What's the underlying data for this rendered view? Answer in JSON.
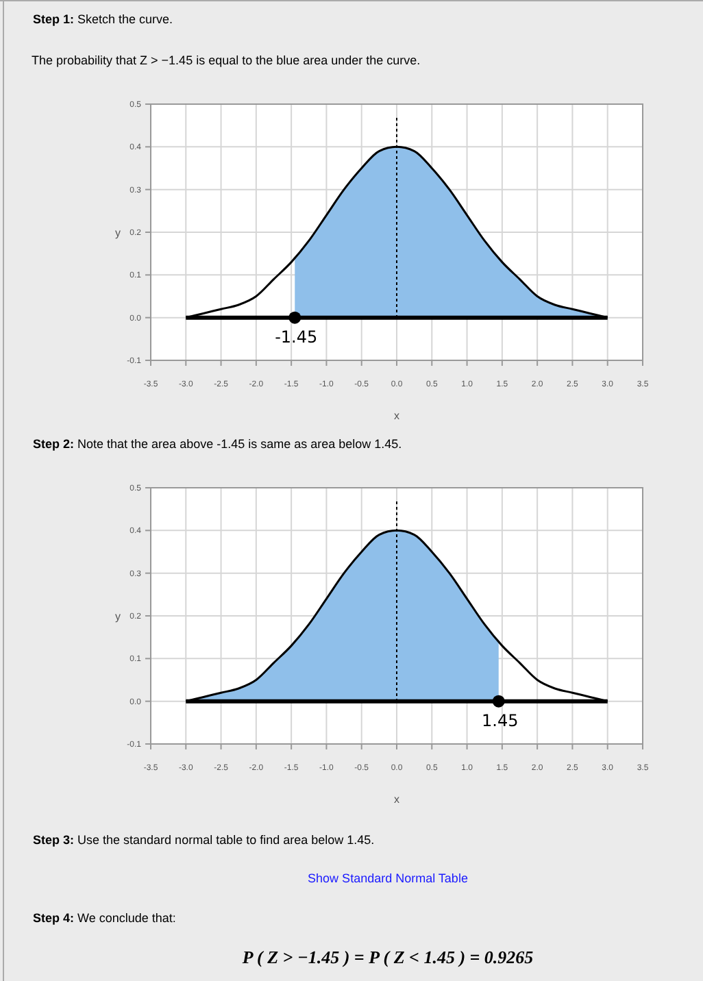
{
  "chart_data": [
    {
      "type": "line",
      "title": "Step 1: Sketch the curve.",
      "subtitle": "The probability that Z > −1.45 is equal to the blue area under the curve.",
      "xlabel": "x",
      "ylabel": "y",
      "xlim": [
        -3.5,
        3.5
      ],
      "xticks": [
        -3.5,
        {
          "value": -3,
          "label": "-3.0"
        },
        -2.5,
        {
          "value": -2,
          "label": "-2.0"
        },
        -1.5,
        {
          "value": -1,
          "label": "-1.0"
        },
        -0.5,
        {
          "value": 0,
          "label": "0.0"
        },
        0.5,
        {
          "value": 1,
          "label": "1.0"
        },
        1.5,
        {
          "value": 2,
          "label": "2.0"
        },
        2.5,
        {
          "value": 3,
          "label": "3.0"
        },
        3.5
      ],
      "ylim": [
        -0.1,
        0.5
      ],
      "yticks": [
        -0.1,
        {
          "value": 0,
          "label": "0.0"
        },
        0.1,
        0.2,
        0.3,
        0.4,
        0.5
      ],
      "grid": true,
      "series": [
        {
          "type": "area",
          "color": "#8fbfea",
          "x": [
            -1.45,
            -1.25,
            -1,
            -0.75,
            -0.5,
            -0.25,
            0,
            0.25,
            0.5,
            0.75,
            1,
            1.25,
            1.5,
            1.75,
            2,
            2.25,
            2.5,
            2.75,
            3
          ],
          "values": [
            0.14,
            0.18,
            0.24,
            0.3,
            0.35,
            0.39,
            0.4,
            0.39,
            0.35,
            0.3,
            0.24,
            0.18,
            0.13,
            0.09,
            0.05,
            0.03,
            0.02,
            0.01,
            0.0
          ]
        },
        {
          "color": "#000000",
          "x": [
            -3,
            -2.75,
            -2.5,
            -2.25,
            -2,
            -1.75,
            -1.5,
            -1.25,
            -1,
            -0.75,
            -0.5,
            -0.25,
            0,
            0.25,
            0.5,
            0.75,
            1,
            1.25,
            1.5,
            1.75,
            2,
            2.25,
            2.5,
            2.75,
            3
          ],
          "values": [
            0.0,
            0.01,
            0.02,
            0.03,
            0.05,
            0.09,
            0.13,
            0.18,
            0.24,
            0.3,
            0.35,
            0.39,
            0.4,
            0.39,
            0.35,
            0.3,
            0.24,
            0.18,
            0.13,
            0.09,
            0.05,
            0.03,
            0.02,
            0.01,
            0.0
          ]
        },
        {
          "color": "#000000",
          "x": [
            -3,
            3
          ],
          "values": [
            0,
            0
          ]
        },
        {
          "type": "scatter",
          "color": "#000000",
          "marker": "circle",
          "x": [
            -1.45
          ],
          "values": [
            0
          ]
        }
      ],
      "ref_lines": [
        {
          "axis": "x",
          "value": 0,
          "line_style": "dotted",
          "color": "#000000"
        }
      ],
      "annotations": [
        {
          "text": "-1.45",
          "x": -1.45,
          "y": 0
        }
      ]
    },
    {
      "type": "line",
      "title": "Step 2: Note that the area above -1.45 is same as area below 1.45.",
      "xlabel": "x",
      "ylabel": "y",
      "xlim": [
        -3.5,
        3.5
      ],
      "xticks": [
        -3.5,
        {
          "value": -3,
          "label": "-3.0"
        },
        -2.5,
        {
          "value": -2,
          "label": "-2.0"
        },
        -1.5,
        {
          "value": -1,
          "label": "-1.0"
        },
        -0.5,
        {
          "value": 0,
          "label": "0.0"
        },
        0.5,
        {
          "value": 1,
          "label": "1.0"
        },
        1.5,
        {
          "value": 2,
          "label": "2.0"
        },
        2.5,
        {
          "value": 3,
          "label": "3.0"
        },
        3.5
      ],
      "ylim": [
        -0.1,
        0.5
      ],
      "yticks": [
        -0.1,
        {
          "value": 0,
          "label": "0.0"
        },
        0.1,
        0.2,
        0.3,
        0.4,
        0.5
      ],
      "grid": true,
      "series": [
        {
          "type": "area",
          "color": "#8fbfea",
          "x": [
            -3,
            -2.75,
            -2.5,
            -2.25,
            -2,
            -1.75,
            -1.5,
            -1.25,
            -1,
            -0.75,
            -0.5,
            -0.25,
            0,
            0.25,
            0.5,
            0.75,
            1,
            1.25,
            1.45
          ],
          "values": [
            0.0,
            0.01,
            0.02,
            0.03,
            0.05,
            0.09,
            0.13,
            0.18,
            0.24,
            0.3,
            0.35,
            0.39,
            0.4,
            0.39,
            0.35,
            0.3,
            0.24,
            0.18,
            0.14
          ]
        },
        {
          "color": "#000000",
          "x": [
            -3,
            -2.75,
            -2.5,
            -2.25,
            -2,
            -1.75,
            -1.5,
            -1.25,
            -1,
            -0.75,
            -0.5,
            -0.25,
            0,
            0.25,
            0.5,
            0.75,
            1,
            1.25,
            1.5,
            1.75,
            2,
            2.25,
            2.5,
            2.75,
            3
          ],
          "values": [
            0.0,
            0.01,
            0.02,
            0.03,
            0.05,
            0.09,
            0.13,
            0.18,
            0.24,
            0.3,
            0.35,
            0.39,
            0.4,
            0.39,
            0.35,
            0.3,
            0.24,
            0.18,
            0.13,
            0.09,
            0.05,
            0.03,
            0.02,
            0.01,
            0.0
          ]
        },
        {
          "color": "#000000",
          "x": [
            -3,
            3
          ],
          "values": [
            0,
            0
          ]
        },
        {
          "type": "scatter",
          "color": "#000000",
          "marker": "circle",
          "x": [
            1.45
          ],
          "values": [
            0
          ]
        }
      ],
      "ref_lines": [
        {
          "axis": "x",
          "value": 0,
          "line_style": "dotted",
          "color": "#000000"
        }
      ],
      "annotations": [
        {
          "text": "1.45",
          "x": 1.45,
          "y": 0
        },
        "Step 3: Use the standard normal table to find area below 1.45.",
        "Show Standard Normal Table",
        "Step 4: We conclude that:",
        "P ( Z > −1.45 ) = P ( Z < 1.45 ) = 0.9265"
      ]
    }
  ]
}
